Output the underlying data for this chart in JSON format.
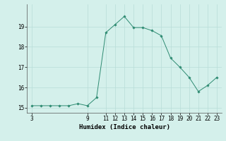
{
  "xlabel": "Humidex (Indice chaleur)",
  "x_values": [
    3,
    4,
    5,
    6,
    7,
    8,
    9,
    10,
    11,
    12,
    13,
    14,
    15,
    16,
    17,
    18,
    19,
    20,
    21,
    22,
    23
  ],
  "y_values": [
    15.1,
    15.1,
    15.1,
    15.1,
    15.1,
    15.2,
    15.1,
    15.5,
    18.7,
    19.1,
    19.5,
    18.95,
    18.95,
    18.8,
    18.55,
    17.45,
    17.0,
    16.5,
    15.8,
    16.1,
    16.5
  ],
  "line_color": "#2e8b72",
  "marker_color": "#2e8b72",
  "bg_color": "#d4f0eb",
  "grid_color": "#b8ddd8",
  "xlim": [
    2.5,
    23.5
  ],
  "ylim": [
    14.75,
    20.1
  ],
  "xticks": [
    3,
    9,
    11,
    12,
    13,
    14,
    15,
    16,
    17,
    18,
    19,
    20,
    21,
    22,
    23
  ],
  "yticks": [
    15,
    16,
    17,
    18,
    19
  ],
  "tick_fontsize": 5.5,
  "label_fontsize": 6.5
}
